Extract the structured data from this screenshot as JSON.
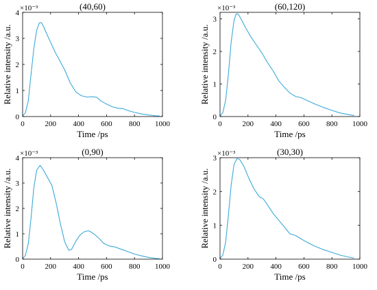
{
  "chart_data": [
    {
      "type": "line",
      "title": "(40,60)",
      "xlabel": "Time /ps",
      "ylabel": "Relative intensity /a.u.",
      "y_exponent": "×10⁻³",
      "xlim": [
        0,
        1000
      ],
      "ylim": [
        0,
        4
      ],
      "xticks": [
        "0",
        "200",
        "400",
        "600",
        "800",
        "1000"
      ],
      "yticks": [
        "0",
        "1",
        "2",
        "3",
        "4"
      ],
      "series": [
        {
          "color": "#3aa9d8",
          "x": [
            0,
            20,
            40,
            60,
            80,
            100,
            120,
            135,
            150,
            170,
            200,
            230,
            260,
            300,
            340,
            380,
            420,
            460,
            500,
            530,
            560,
            600,
            640,
            680,
            720,
            760,
            800,
            850,
            900,
            950,
            980
          ],
          "y": [
            0.02,
            0.15,
            0.6,
            1.6,
            2.6,
            3.3,
            3.6,
            3.6,
            3.45,
            3.2,
            2.85,
            2.5,
            2.2,
            1.8,
            1.3,
            0.95,
            0.8,
            0.75,
            0.76,
            0.74,
            0.6,
            0.48,
            0.38,
            0.32,
            0.3,
            0.22,
            0.16,
            0.1,
            0.06,
            0.03,
            0.02
          ]
        }
      ]
    },
    {
      "type": "line",
      "title": "(60,120)",
      "xlabel": "Time /ps",
      "ylabel": "Relative intensity /a.u.",
      "y_exponent": "×10⁻³",
      "xlim": [
        0,
        1000
      ],
      "ylim": [
        0,
        3.2
      ],
      "xticks": [
        "0",
        "200",
        "400",
        "600",
        "800",
        "1000"
      ],
      "yticks": [
        "0",
        "1",
        "2",
        "3"
      ],
      "series": [
        {
          "color": "#3aa9d8",
          "x": [
            0,
            20,
            40,
            60,
            80,
            100,
            115,
            130,
            150,
            180,
            220,
            260,
            300,
            340,
            380,
            420,
            460,
            500,
            540,
            580,
            620,
            680,
            740,
            800,
            860,
            920,
            960
          ],
          "y": [
            0.02,
            0.12,
            0.5,
            1.3,
            2.3,
            2.95,
            3.15,
            3.15,
            3.0,
            2.75,
            2.45,
            2.2,
            1.95,
            1.65,
            1.4,
            1.1,
            0.9,
            0.72,
            0.62,
            0.58,
            0.5,
            0.38,
            0.28,
            0.19,
            0.11,
            0.06,
            0.03
          ]
        }
      ]
    },
    {
      "type": "line",
      "title": "(0,90)",
      "xlabel": "Time /ps",
      "ylabel": "Relative intensity /a.u.",
      "y_exponent": "×10⁻³",
      "xlim": [
        0,
        1000
      ],
      "ylim": [
        0,
        4
      ],
      "xticks": [
        "0",
        "200",
        "400",
        "600",
        "800",
        "1000"
      ],
      "yticks": [
        "0",
        "1",
        "2",
        "3",
        "4"
      ],
      "series": [
        {
          "color": "#3aa9d8",
          "x": [
            0,
            20,
            40,
            60,
            80,
            100,
            125,
            150,
            180,
            210,
            240,
            270,
            300,
            330,
            350,
            380,
            410,
            440,
            470,
            490,
            520,
            550,
            580,
            620,
            660,
            700,
            750,
            800,
            850,
            900,
            950,
            980
          ],
          "y": [
            0.02,
            0.15,
            0.6,
            1.6,
            2.8,
            3.5,
            3.7,
            3.5,
            3.2,
            2.9,
            2.2,
            1.4,
            0.7,
            0.35,
            0.38,
            0.7,
            0.95,
            1.08,
            1.12,
            1.07,
            0.95,
            0.8,
            0.62,
            0.52,
            0.48,
            0.4,
            0.3,
            0.2,
            0.13,
            0.07,
            0.03,
            0.02
          ]
        }
      ]
    },
    {
      "type": "line",
      "title": "(30,30)",
      "xlabel": "Time /ps",
      "ylabel": "Relative intensity /a.u.",
      "y_exponent": "×10⁻³",
      "xlim": [
        0,
        1000
      ],
      "ylim": [
        0,
        3
      ],
      "xticks": [
        "0",
        "200",
        "400",
        "600",
        "800",
        "1000"
      ],
      "yticks": [
        "0",
        "1",
        "2",
        "3"
      ],
      "series": [
        {
          "color": "#3aa9d8",
          "x": [
            0,
            20,
            40,
            60,
            80,
            100,
            120,
            140,
            170,
            200,
            240,
            280,
            310,
            340,
            380,
            420,
            460,
            500,
            540,
            580,
            620,
            680,
            740,
            800,
            860,
            920,
            960
          ],
          "y": [
            0.02,
            0.12,
            0.5,
            1.3,
            2.2,
            2.8,
            2.97,
            2.95,
            2.75,
            2.45,
            2.1,
            1.85,
            1.78,
            1.6,
            1.35,
            1.15,
            0.95,
            0.75,
            0.7,
            0.6,
            0.5,
            0.38,
            0.28,
            0.2,
            0.12,
            0.06,
            0.03
          ]
        }
      ]
    }
  ]
}
